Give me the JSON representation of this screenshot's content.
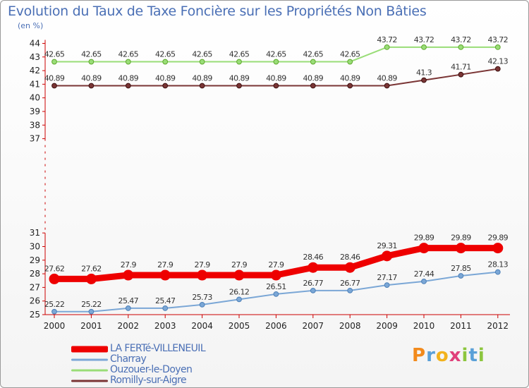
{
  "title": "Evolution du Taux de Taxe Foncière sur les Propriétés Non Bâties",
  "unit_label": "(en %)",
  "brand": {
    "chars": [
      "P",
      "r",
      "o",
      "x",
      "i",
      "t",
      "i"
    ],
    "colors": [
      "#f28a1c",
      "#5aa0d8",
      "#f2b21c",
      "#e0407a",
      "#8cc63e",
      "#5aa0d8",
      "#8cc63e"
    ]
  },
  "chart_data": {
    "type": "line",
    "x": [
      "2000",
      "2001",
      "2002",
      "2003",
      "2004",
      "2005",
      "2006",
      "2007",
      "2008",
      "2009",
      "2010",
      "2011",
      "2012"
    ],
    "y_ticks": [
      25,
      26,
      27,
      28,
      29,
      30,
      31,
      37,
      38,
      39,
      40,
      41,
      42,
      43,
      44
    ],
    "y_tick_labels": [
      "25",
      "26",
      "27",
      "28",
      "29",
      "30",
      "31",
      "37",
      "38",
      "39",
      "40",
      "41",
      "42",
      "43",
      "44"
    ],
    "axis_break": [
      31,
      37
    ],
    "grid": false,
    "legend_position": "bottom-left",
    "series": [
      {
        "name": "LA FERTé-VILLENEUIL",
        "color": "#ee0000",
        "width": 9,
        "values": [
          27.62,
          27.62,
          27.9,
          27.9,
          27.9,
          27.9,
          27.9,
          28.46,
          28.46,
          29.31,
          29.89,
          29.89,
          29.89
        ],
        "labels": [
          "27.62",
          "27.62",
          "27.9",
          "27.9",
          "27.9",
          "27.9",
          "27.9",
          "28.46",
          "28.46",
          "29.31",
          "29.89",
          "29.89",
          "29.89"
        ]
      },
      {
        "name": "Charray",
        "color": "#7ba7d6",
        "width": 2,
        "values": [
          25.22,
          25.22,
          25.47,
          25.47,
          25.73,
          26.12,
          26.51,
          26.77,
          26.77,
          27.17,
          27.44,
          27.85,
          28.13
        ],
        "labels": [
          "25.22",
          "25.22",
          "25.47",
          "25.47",
          "25.73",
          "26.12",
          "26.51",
          "26.77",
          "26.77",
          "27.17",
          "27.44",
          "27.85",
          "28.13"
        ]
      },
      {
        "name": "Ouzouer-le-Doyen",
        "color": "#99dd77",
        "width": 2,
        "values": [
          42.65,
          42.65,
          42.65,
          42.65,
          42.65,
          42.65,
          42.65,
          42.65,
          42.65,
          43.72,
          43.72,
          43.72,
          43.72
        ],
        "labels": [
          "42.65",
          "42.65",
          "42.65",
          "42.65",
          "42.65",
          "42.65",
          "42.65",
          "42.65",
          "42.65",
          "43.72",
          "43.72",
          "43.72",
          "43.72"
        ]
      },
      {
        "name": "Romilly-sur-Aigre",
        "color": "#7a3535",
        "width": 2,
        "values": [
          40.89,
          40.89,
          40.89,
          40.89,
          40.89,
          40.89,
          40.89,
          40.89,
          40.89,
          40.89,
          41.3,
          41.71,
          42.13
        ],
        "labels": [
          "40.89",
          "40.89",
          "40.89",
          "40.89",
          "40.89",
          "40.89",
          "40.89",
          "40.89",
          "40.89",
          "40.89",
          "41.3",
          "41.71",
          "42.13"
        ]
      }
    ]
  }
}
